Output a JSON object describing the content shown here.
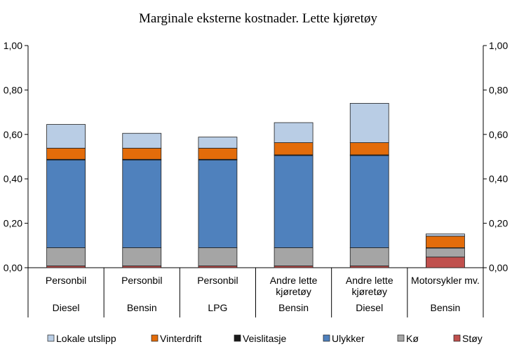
{
  "chart_data": {
    "type": "bar",
    "stacked": true,
    "title": "Marginale eksterne kostnader. Lette kjøretøy",
    "categories": [
      {
        "lines": [
          "Personbil"
        ],
        "fuel": "Diesel"
      },
      {
        "lines": [
          "Personbil"
        ],
        "fuel": "Bensin"
      },
      {
        "lines": [
          "Personbil"
        ],
        "fuel": "LPG"
      },
      {
        "lines": [
          "Andre lette",
          "kjøretøy"
        ],
        "fuel": "Bensin"
      },
      {
        "lines": [
          "Andre lette",
          "kjøretøy"
        ],
        "fuel": "Diesel"
      },
      {
        "lines": [
          "Motorsykler mv."
        ],
        "fuel": "Bensin"
      }
    ],
    "ylim": [
      0,
      1
    ],
    "yticks": [
      "0,00",
      "0,20",
      "0,40",
      "0,60",
      "0,80",
      "1,00"
    ],
    "ytick_values": [
      0,
      0.2,
      0.4,
      0.6,
      0.8,
      1.0
    ],
    "grid": false,
    "legend_position": "bottom",
    "series": [
      {
        "name": "Støy",
        "color": "#c0504d",
        "values": [
          0.008,
          0.008,
          0.008,
          0.008,
          0.008,
          0.048
        ]
      },
      {
        "name": "Kø",
        "color": "#a5a5a5",
        "values": [
          0.082,
          0.082,
          0.082,
          0.082,
          0.082,
          0.04
        ]
      },
      {
        "name": "Ulykker",
        "color": "#4f81bd",
        "values": [
          0.395,
          0.395,
          0.395,
          0.415,
          0.415,
          0.0
        ]
      },
      {
        "name": "Veislitasje",
        "color": "#1a1a1a",
        "values": [
          0.003,
          0.003,
          0.003,
          0.003,
          0.003,
          0.002
        ]
      },
      {
        "name": "Vinterdrift",
        "color": "#e36c0a",
        "values": [
          0.05,
          0.05,
          0.05,
          0.055,
          0.055,
          0.052
        ]
      },
      {
        "name": "Lokale utslipp",
        "color": "#b9cde5",
        "values": [
          0.107,
          0.067,
          0.05,
          0.09,
          0.177,
          0.01
        ]
      }
    ],
    "legend_order": [
      "Lokale utslipp",
      "Vinterdrift",
      "Veislitasje",
      "Ulykker",
      "Kø",
      "Støy"
    ]
  }
}
